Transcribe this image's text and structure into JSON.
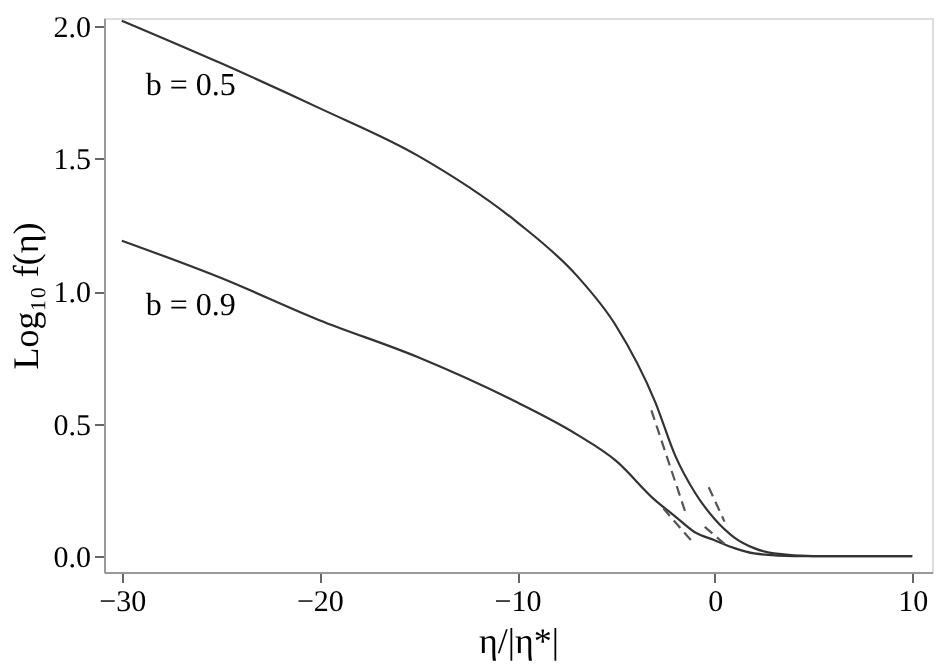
{
  "chart_data": {
    "type": "line",
    "xlabel": "η/|η*|",
    "ylabel": "Log₁₀ f(η)",
    "xlim": [
      -30.9,
      11
    ],
    "ylim": [
      -0.06,
      2.03
    ],
    "xticks": [
      {
        "value": -30,
        "label": "−30"
      },
      {
        "value": -20,
        "label": "−20"
      },
      {
        "value": -10,
        "label": "−10"
      },
      0,
      10
    ],
    "yticks": [
      {
        "value": 0,
        "label": "0.0"
      },
      0.5,
      {
        "value": 1,
        "label": "1.0"
      },
      1.5,
      {
        "value": 2,
        "label": "2.0"
      }
    ],
    "grid": false,
    "marker": "none",
    "series": [
      {
        "name": "b = 0.5",
        "color": "#333333",
        "line_style": "solid",
        "x": [
          -30,
          -25,
          -20,
          -15,
          -10,
          -7,
          -5,
          -3,
          -2,
          -1,
          0,
          1,
          2,
          3,
          5,
          10
        ],
        "values": [
          2.02,
          1.86,
          1.69,
          1.51,
          1.26,
          1.06,
          0.87,
          0.58,
          0.38,
          0.24,
          0.14,
          0.07,
          0.03,
          0.01,
          0.0,
          0.0
        ]
      },
      {
        "name": "b = 0.9",
        "color": "#333333",
        "line_style": "solid",
        "x": [
          -30,
          -25,
          -20,
          -15,
          -10,
          -7,
          -5,
          -3,
          -2,
          -1,
          0,
          1,
          2,
          4,
          10
        ],
        "values": [
          1.19,
          1.05,
          0.89,
          0.75,
          0.58,
          0.46,
          0.36,
          0.21,
          0.15,
          0.09,
          0.06,
          0.03,
          0.01,
          0.0,
          0.0
        ]
      },
      {
        "color": "#555555",
        "line_style": "dashed",
        "x": [
          -3.2,
          -1.5
        ],
        "values": [
          0.55,
          0.17
        ]
      },
      {
        "color": "#555555",
        "line_style": "dashed",
        "x": [
          -0.3,
          0.5
        ],
        "values": [
          0.26,
          0.13
        ]
      },
      {
        "color": "#555555",
        "line_style": "dashed",
        "x": [
          -2.6,
          -1.2
        ],
        "values": [
          0.18,
          0.06
        ]
      },
      {
        "color": "#555555",
        "line_style": "dashed",
        "x": [
          -0.5,
          0.6
        ],
        "values": [
          0.11,
          0.04
        ]
      }
    ]
  }
}
